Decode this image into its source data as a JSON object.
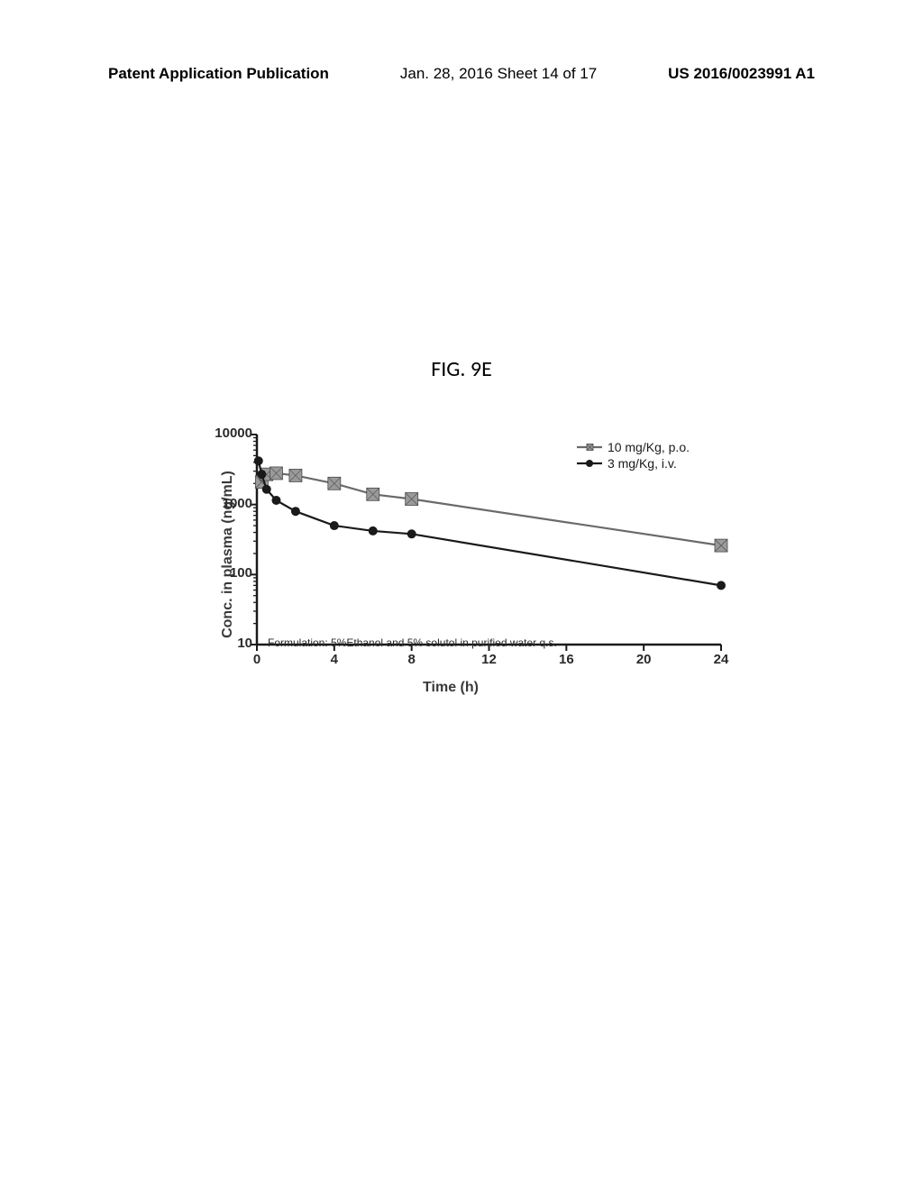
{
  "header": {
    "left": "Patent Application Publication",
    "center": "Jan. 28, 2016  Sheet 14 of 17",
    "right": "US 2016/0023991 A1"
  },
  "figure_title": "FIG. 9E",
  "chart": {
    "type": "line",
    "y_label": "Conc. in plasma (ng/mL)",
    "x_label": "Time (h)",
    "y_scale": "log",
    "ylim": [
      10,
      10000
    ],
    "y_ticks": [
      10,
      100,
      1000,
      10000
    ],
    "xlim": [
      0,
      24
    ],
    "x_ticks": [
      0,
      4,
      8,
      12,
      16,
      20,
      24
    ],
    "background_color": "#ffffff",
    "axis_color": "#1a1a1a",
    "tick_fontsize": 15,
    "label_fontsize": 16,
    "label_fontweight": "bold",
    "axis_linewidth": 2.5,
    "annotation": "Formulation: 5%Ethanol and 5% solutol in purified water q.s.",
    "annotation_fontsize": 12,
    "series": [
      {
        "name": "10 mg/Kg, p.o.",
        "color": "#6a6a6a",
        "marker": "square-hatched",
        "marker_size": 7,
        "line_width": 2.2,
        "x": [
          0.25,
          0.5,
          1,
          2,
          4,
          6,
          8,
          24
        ],
        "y": [
          2100,
          2700,
          2800,
          2600,
          2000,
          1400,
          1200,
          260
        ]
      },
      {
        "name": "3 mg/Kg, i.v.",
        "color": "#1a1a1a",
        "marker": "circle",
        "marker_size": 5,
        "line_width": 2.2,
        "x": [
          0.083,
          0.25,
          0.5,
          1,
          2,
          4,
          6,
          8,
          24
        ],
        "y": [
          4200,
          2700,
          1650,
          1150,
          800,
          500,
          420,
          380,
          70
        ]
      }
    ],
    "legend_position": "top-right",
    "legend_fontsize": 14
  }
}
